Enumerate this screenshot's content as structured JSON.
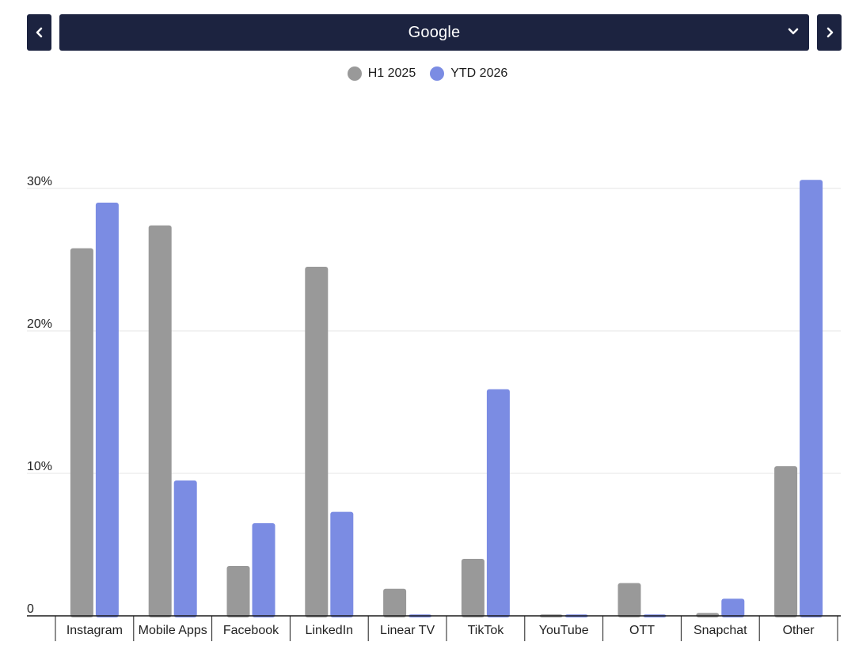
{
  "selector": {
    "value": "Google"
  },
  "colors": {
    "header_bg": "#1c2340",
    "series_1": "#999999",
    "series_2": "#7b8ce3"
  },
  "chart_data": {
    "type": "bar",
    "categories": [
      "Instagram",
      "Mobile Apps",
      "Facebook",
      "LinkedIn",
      "Linear TV",
      "TikTok",
      "YouTube",
      "OTT",
      "Snapchat",
      "Other"
    ],
    "series": [
      {
        "name": "H1 2025",
        "color": "#999999",
        "values": [
          25.8,
          27.4,
          3.5,
          24.5,
          1.9,
          4.0,
          0.1,
          2.3,
          0.2,
          10.5
        ]
      },
      {
        "name": "YTD 2026",
        "color": "#7b8ce3",
        "values": [
          29.0,
          9.5,
          6.5,
          7.3,
          0.1,
          15.9,
          0.1,
          0.1,
          1.2,
          30.6
        ]
      }
    ],
    "ylim": [
      0,
      30
    ],
    "yticks": [
      {
        "value": 0,
        "label": "0"
      },
      {
        "value": 10,
        "label": "10%"
      },
      {
        "value": 20,
        "label": "20%"
      },
      {
        "value": 30,
        "label": "30%"
      }
    ],
    "grid": true,
    "legend_position": "top-center"
  }
}
